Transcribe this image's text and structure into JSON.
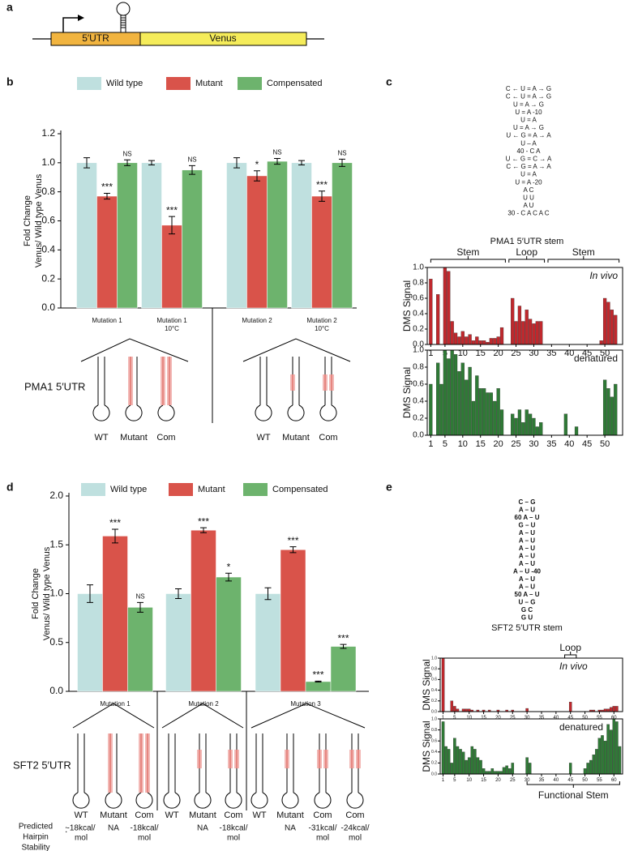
{
  "panel_labels": [
    "a",
    "b",
    "c",
    "d",
    "e"
  ],
  "construct": {
    "utr": "5′UTR",
    "venus": "Venus"
  },
  "pma1_hairpins": {
    "label": "PMA1 5′UTR",
    "labels": [
      "WT",
      "Mutant",
      "Com",
      "WT",
      "Mutant",
      "Com"
    ]
  },
  "sft2_hairpins": {
    "label": "SFT2 5′UTR",
    "labels": [
      "WT",
      "Mutant",
      "Com",
      "WT",
      "Mutant",
      "Com",
      "WT",
      "Mutant",
      "Com",
      "Com"
    ],
    "stability_heading": [
      "Predicted",
      "Hairpin",
      "Stability"
    ],
    "stability_colon": ":",
    "stability": [
      [
        "-18kcal/",
        "mol"
      ],
      [
        "NA"
      ],
      [
        "-18kcal/",
        "mol"
      ],
      null,
      [
        "NA"
      ],
      [
        "-18kcal/",
        "mol"
      ],
      null,
      [
        "NA"
      ],
      [
        "-31kcal/",
        "mol"
      ],
      [
        "-24kcal/",
        "mol"
      ]
    ]
  },
  "pma1_structure": {
    "title": "PMA1 5′UTR stem",
    "rows": [
      "C ← U = A → G",
      "C ← U = A → G",
      "U = A → G",
      "U = A  -10",
      "U = A",
      "U = A → G",
      "U ← G = A → A",
      "U – A",
      "40 - C    A",
      "U ← G = C → A",
      "C ← G = A → A",
      "U = A",
      "U = A -20",
      "A      C",
      "U        U",
      "A        U",
      "30 - C A C A C"
    ]
  },
  "sft2_structure": {
    "title": "SFT2 5′UTR stem",
    "rows": [
      "C – G",
      "A – U",
      "60 A – U",
      "G – U",
      "A – U",
      "A – U",
      "A – U",
      "A – U",
      "A – U",
      "A – U -40",
      "A – U",
      "A – U",
      "50 A – U",
      "U – G",
      "G     C",
      "G U"
    ]
  },
  "chart_data": [
    {
      "type": "bar",
      "ylabel": [
        "Fold Change",
        "Venus/ Wild type Venus"
      ],
      "categories": [
        [
          "Mutation 1"
        ],
        [
          "Mutation 1",
          "10°C"
        ],
        [
          "Mutation 2"
        ],
        [
          "Mutation 2",
          "10°C"
        ]
      ],
      "series": [
        {
          "name": "Wild type",
          "color": "#bfe0df",
          "values": [
            1.0,
            1.0,
            1.0,
            1.0
          ],
          "errors": [
            0.035,
            0.015,
            0.035,
            0.015
          ]
        },
        {
          "name": "Mutant",
          "color": "#d9534a",
          "values": [
            0.77,
            0.57,
            0.91,
            0.77
          ],
          "errors": [
            0.02,
            0.06,
            0.035,
            0.035
          ],
          "annotations": [
            "***",
            "***",
            "*",
            "***"
          ]
        },
        {
          "name": "Compensated",
          "color": "#6db36d",
          "values": [
            1.0,
            0.95,
            1.01,
            1.0
          ],
          "errors": [
            0.02,
            0.03,
            0.02,
            0.025
          ],
          "annotations": [
            "NS",
            "NS",
            "NS",
            "NS"
          ]
        }
      ],
      "ylim": [
        0,
        1.2
      ],
      "yticks": [
        {
          "value": 0,
          "label": "0.0"
        },
        0.2,
        0.4,
        0.6,
        0.8,
        {
          "value": 1,
          "label": "1.0"
        },
        1.2
      ]
    },
    {
      "type": "dms",
      "ylabel": "DMS Signal",
      "annotation": "In vivo",
      "regions": [
        "Stem",
        "Loop",
        "Stem"
      ],
      "color": "#c0282d",
      "x": [
        1,
        2,
        3,
        4,
        5,
        6,
        7,
        8,
        9,
        10,
        11,
        12,
        13,
        14,
        15,
        16,
        17,
        18,
        19,
        20,
        21,
        22,
        23,
        24,
        25,
        26,
        27,
        28,
        29,
        30,
        31,
        32,
        33,
        34,
        35,
        36,
        37,
        38,
        39,
        40,
        41,
        42,
        43,
        44,
        45,
        46,
        47,
        48,
        49,
        50,
        51,
        52,
        53
      ],
      "values": [
        0.85,
        0,
        0.65,
        0,
        1.0,
        0.95,
        0.3,
        0.15,
        0.1,
        0.17,
        0.1,
        0.13,
        0.05,
        0.1,
        0.05,
        0.05,
        0.03,
        0.08,
        0.08,
        0.1,
        0.22,
        0,
        0,
        0.6,
        0.3,
        0.5,
        0.3,
        0.45,
        0.33,
        0.27,
        0.3,
        0.3,
        0,
        0,
        0,
        0,
        0,
        0,
        0,
        0,
        0,
        0,
        0,
        0,
        0,
        0,
        0,
        0,
        0.05,
        0.6,
        0.55,
        0.45,
        0.38
      ],
      "xlim": [
        0,
        55
      ],
      "ylim": [
        0,
        1
      ],
      "xticks": [
        1,
        5,
        10,
        15,
        20,
        25,
        30,
        35,
        40,
        45,
        50
      ],
      "yticks": [
        {
          "value": 0,
          "label": "0.0"
        },
        0.2,
        0.4,
        0.6,
        0.8,
        {
          "value": 1,
          "label": "1.0"
        }
      ]
    },
    {
      "type": "dms",
      "ylabel": "DMS Signal",
      "annotation": "denatured",
      "color": "#2f7a36",
      "x": [
        1,
        2,
        3,
        4,
        5,
        6,
        7,
        8,
        9,
        10,
        11,
        12,
        13,
        14,
        15,
        16,
        17,
        18,
        19,
        20,
        21,
        22,
        23,
        24,
        25,
        26,
        27,
        28,
        29,
        30,
        31,
        32,
        33,
        34,
        35,
        36,
        37,
        38,
        39,
        40,
        41,
        42,
        43,
        44,
        45,
        46,
        47,
        48,
        49,
        50,
        51,
        52,
        53
      ],
      "values": [
        0.6,
        0,
        0.85,
        0.6,
        1.0,
        0.9,
        1.0,
        0.95,
        0.75,
        0.85,
        0.65,
        0.8,
        0.4,
        0.7,
        0.55,
        0.55,
        0.5,
        0.5,
        0.4,
        0.55,
        0.3,
        0,
        0,
        0.25,
        0.2,
        0.3,
        0.15,
        0.3,
        0.25,
        0.2,
        0.1,
        0.15,
        0,
        0,
        0,
        0,
        0,
        0,
        0.25,
        0,
        0,
        0.1,
        0,
        0,
        0,
        0,
        0,
        0,
        0,
        0.65,
        0.55,
        0.45,
        0.6
      ],
      "xlim": [
        0,
        55
      ],
      "ylim": [
        0,
        1
      ],
      "xticks": [
        1,
        5,
        10,
        15,
        20,
        25,
        30,
        35,
        40,
        45,
        50
      ],
      "yticks": [
        {
          "value": 0,
          "label": "0.0"
        },
        0.2,
        0.4,
        0.6,
        0.8,
        {
          "value": 1,
          "label": "1.0"
        }
      ]
    },
    {
      "type": "bar",
      "ylabel": [
        "Fold Change",
        "Venus/ Wild type Venus"
      ],
      "categories": [
        [
          "Mutation 1"
        ],
        [
          "Mutation 2"
        ],
        [
          "Mutation 3"
        ]
      ],
      "series": [
        {
          "name": "Wild type",
          "color": "#bfe0df",
          "values": [
            1.0,
            1.0,
            1.0
          ],
          "errors": [
            0.09,
            0.05,
            0.06
          ]
        },
        {
          "name": "Mutant",
          "color": "#d9534a",
          "values": [
            1.59,
            1.65,
            1.45
          ],
          "errors": [
            0.07,
            0.025,
            0.03
          ],
          "annotations": [
            "***",
            "***",
            "***"
          ]
        },
        {
          "name": "Compensated",
          "color": "#6db36d",
          "values": [
            [
              0.86
            ],
            [
              1.17
            ],
            [
              0.1,
              0.46
            ]
          ],
          "errors": [
            [
              0.05
            ],
            [
              0.04
            ],
            [
              0.005,
              0.02
            ]
          ],
          "annotations": [
            [
              "NS"
            ],
            [
              "*"
            ],
            [
              "***",
              "***"
            ]
          ]
        }
      ],
      "ylim": [
        0,
        2
      ],
      "yticks": [
        {
          "value": 0,
          "label": "0.0"
        },
        0.5,
        {
          "value": 1,
          "label": "1.0"
        },
        1.5,
        {
          "value": 2,
          "label": "2.0"
        }
      ]
    },
    {
      "type": "dms",
      "ylabel": "DMS Signal",
      "annotation": "In vivo",
      "regions": [
        "Loop"
      ],
      "color": "#c0282d",
      "x": [
        1,
        2,
        3,
        4,
        5,
        6,
        7,
        8,
        9,
        10,
        11,
        12,
        13,
        14,
        15,
        16,
        17,
        18,
        19,
        20,
        21,
        22,
        23,
        24,
        25,
        26,
        27,
        28,
        29,
        30,
        31,
        32,
        33,
        34,
        35,
        36,
        37,
        38,
        39,
        40,
        41,
        42,
        43,
        44,
        45,
        46,
        47,
        48,
        49,
        50,
        51,
        52,
        53,
        54,
        55,
        56,
        57,
        58,
        59,
        60,
        61,
        62
      ],
      "values": [
        1.0,
        0,
        0,
        0.2,
        0.1,
        0.05,
        0,
        0.05,
        0.05,
        0.05,
        0.03,
        0,
        0.03,
        0,
        0.03,
        0,
        0.03,
        0,
        0,
        0.03,
        0,
        0,
        0.03,
        0,
        0.03,
        0,
        0,
        0,
        0,
        0.06,
        0,
        0,
        0,
        0,
        0,
        0,
        0,
        0,
        0,
        0,
        0,
        0,
        0,
        0,
        0.18,
        0,
        0,
        0,
        0,
        0,
        0,
        0.03,
        0.03,
        0,
        0.03,
        0.03,
        0.05,
        0.05,
        0.08,
        0.1,
        0.1,
        0
      ],
      "xlim": [
        0,
        63
      ],
      "ylim": [
        0,
        1
      ],
      "xticks": [
        1,
        5,
        10,
        15,
        20,
        25,
        30,
        35,
        40,
        45,
        50,
        55,
        60
      ],
      "yticks": [
        {
          "value": 0,
          "label": "0.0"
        },
        0.2,
        0.4,
        0.6,
        0.8,
        {
          "value": 1,
          "label": "1.0"
        }
      ]
    },
    {
      "type": "dms",
      "ylabel": "DMS Signal",
      "annotation": "denatured",
      "regions": [
        "Functional Stem"
      ],
      "color": "#2f7a36",
      "x": [
        1,
        2,
        3,
        4,
        5,
        6,
        7,
        8,
        9,
        10,
        11,
        12,
        13,
        14,
        15,
        16,
        17,
        18,
        19,
        20,
        21,
        22,
        23,
        24,
        25,
        26,
        27,
        28,
        29,
        30,
        31,
        32,
        33,
        34,
        35,
        36,
        37,
        38,
        39,
        40,
        41,
        42,
        43,
        44,
        45,
        46,
        47,
        48,
        49,
        50,
        51,
        52,
        53,
        54,
        55,
        56,
        57,
        58,
        59,
        60,
        61,
        62
      ],
      "values": [
        0.95,
        0.5,
        0.45,
        0.2,
        0.65,
        0.5,
        0.45,
        0.4,
        0.25,
        0.3,
        0.5,
        0.45,
        0.3,
        0.25,
        0.1,
        0.05,
        0.05,
        0.1,
        0.05,
        0.05,
        0.05,
        0.12,
        0.15,
        0.1,
        0.2,
        0,
        0,
        0,
        0,
        0.3,
        0.2,
        0,
        0,
        0,
        0,
        0,
        0,
        0,
        0,
        0,
        0,
        0,
        0,
        0,
        0.2,
        0,
        0,
        0,
        0,
        0.1,
        0.2,
        0.25,
        0.35,
        0.45,
        0.65,
        0.7,
        0.6,
        0.9,
        0.8,
        1.0,
        0.95,
        0.5
      ],
      "xlim": [
        0,
        63
      ],
      "ylim": [
        0,
        1
      ],
      "xticks": [
        1,
        5,
        10,
        15,
        20,
        25,
        30,
        35,
        40,
        45,
        50,
        55,
        60
      ],
      "yticks": [
        {
          "value": 0,
          "label": "0.0"
        },
        0.2,
        0.4,
        0.6,
        0.8,
        {
          "value": 1,
          "label": "1.0"
        }
      ]
    }
  ]
}
